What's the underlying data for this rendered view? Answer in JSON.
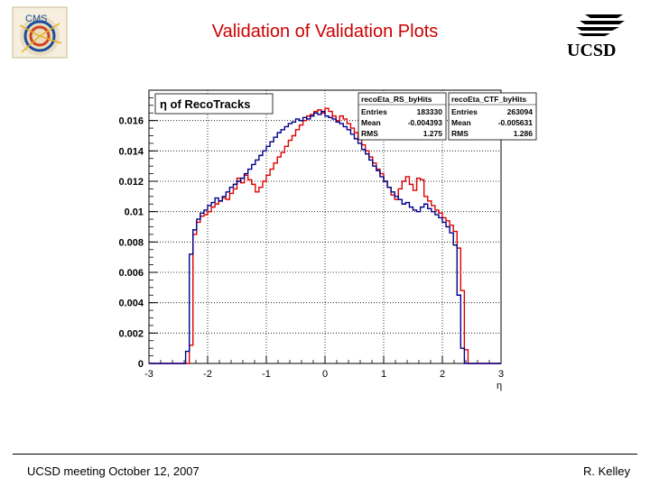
{
  "slide": {
    "title": "Validation of Validation Plots",
    "footer_left": "UCSD meeting October 12, 2007",
    "footer_right": "R. Kelley"
  },
  "logos": {
    "left": "cms-logo",
    "right_text": "UCSD"
  },
  "colors": {
    "title": "#cc0000",
    "series_red": "#dd0000",
    "series_blue": "#00008b",
    "grid": "#000000"
  },
  "chart_data": {
    "type": "bar",
    "title": "η of RecoTracks",
    "xlabel": "η",
    "ylabel": "",
    "xlim": [
      -3,
      3
    ],
    "ylim": [
      0,
      0.018
    ],
    "grid": true,
    "x_ticks": [
      "-3",
      "-2",
      "-1",
      "0",
      "1",
      "2",
      "3"
    ],
    "y_ticks": [
      "0",
      "0.002",
      "0.004",
      "0.006",
      "0.008",
      "0.01",
      "0.012",
      "0.014",
      "0.016"
    ],
    "legend_placement": "top-right",
    "bin_edges_range": [
      -3,
      3
    ],
    "series": [
      {
        "name": "recoEta_RS_byHits",
        "stats": [
          {
            "label": "Entries",
            "value": "183330"
          },
          {
            "label": "Mean",
            "value": "-0.004393"
          },
          {
            "label": "RMS",
            "value": "1.275"
          }
        ],
        "values": [
          0,
          0,
          0,
          0,
          0,
          0,
          0,
          0,
          0,
          0,
          0,
          0.0012,
          0.0085,
          0.0093,
          0.0097,
          0.0098,
          0.01,
          0.0103,
          0.0105,
          0.0107,
          0.0109,
          0.0108,
          0.0112,
          0.0115,
          0.0122,
          0.0119,
          0.0124,
          0.0121,
          0.0118,
          0.0113,
          0.0116,
          0.012,
          0.0124,
          0.0128,
          0.0132,
          0.0136,
          0.0139,
          0.0143,
          0.0147,
          0.015,
          0.0154,
          0.0157,
          0.016,
          0.0163,
          0.0164,
          0.0166,
          0.0167,
          0.0165,
          0.0168,
          0.0166,
          0.0163,
          0.016,
          0.0163,
          0.0161,
          0.0158,
          0.0155,
          0.0152,
          0.0148,
          0.0144,
          0.014,
          0.0136,
          0.0132,
          0.0128,
          0.0125,
          0.012,
          0.0116,
          0.0111,
          0.0108,
          0.0115,
          0.012,
          0.0123,
          0.0118,
          0.0114,
          0.0122,
          0.0121,
          0.011,
          0.0107,
          0.0104,
          0.0101,
          0.0099,
          0.0096,
          0.0094,
          0.0091,
          0.0087,
          0.0076,
          0.0048,
          0.0009,
          0,
          0,
          0,
          0,
          0,
          0,
          0,
          0,
          0
        ]
      },
      {
        "name": "recoEta_CTF_byHits",
        "stats": [
          {
            "label": "Entries",
            "value": "263094"
          },
          {
            "label": "Mean",
            "value": "-0.005631"
          },
          {
            "label": "RMS",
            "value": "1.286"
          }
        ],
        "values": [
          0,
          0,
          0,
          0,
          0,
          0,
          0,
          0,
          0,
          0,
          0.0008,
          0.0072,
          0.0088,
          0.0095,
          0.0099,
          0.0101,
          0.0104,
          0.0106,
          0.0109,
          0.0107,
          0.011,
          0.0113,
          0.0116,
          0.0118,
          0.012,
          0.0122,
          0.0125,
          0.0128,
          0.0131,
          0.0134,
          0.0137,
          0.014,
          0.0143,
          0.0146,
          0.0149,
          0.0152,
          0.0154,
          0.0156,
          0.0158,
          0.0159,
          0.0161,
          0.016,
          0.0162,
          0.0161,
          0.0163,
          0.0165,
          0.0164,
          0.0166,
          0.0163,
          0.0162,
          0.0161,
          0.0159,
          0.0158,
          0.0156,
          0.0154,
          0.0151,
          0.0148,
          0.0145,
          0.0141,
          0.0138,
          0.0134,
          0.013,
          0.0127,
          0.0123,
          0.012,
          0.0116,
          0.0113,
          0.011,
          0.0108,
          0.0105,
          0.0106,
          0.0103,
          0.0101,
          0.01,
          0.0103,
          0.0105,
          0.0102,
          0.01,
          0.0098,
          0.0096,
          0.0093,
          0.009,
          0.0086,
          0.0078,
          0.0045,
          0.001,
          0,
          0,
          0,
          0,
          0,
          0,
          0,
          0,
          0,
          0
        ]
      }
    ]
  }
}
